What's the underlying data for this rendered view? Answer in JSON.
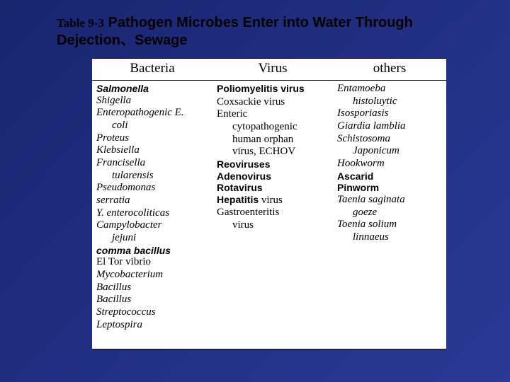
{
  "background_color": "#1f2d7a",
  "title": {
    "table_label": "Table 9-3",
    "main": "Pathogen Microbes Enter into Water Through",
    "sub": "Dejection、Sewage"
  },
  "columns": {
    "c1": "Bacteria",
    "c2": "Virus",
    "c3": "others"
  },
  "bacteria": {
    "l0": "Salmonella",
    "l1": "Shigella",
    "l2": "Enteropathogenic E.",
    "l2b": "coli",
    "l3": "Proteus",
    "l4": "Klebsiella",
    "l5": "Francisella",
    "l5b": "tularensis",
    "l6": " Pseudomonas",
    "l7": "serratia",
    "l8": "Y. enterocoliticas",
    "l9": "Campylobacter",
    "l9b": "jejuni",
    "l10": "comma bacillus",
    "l11": "El Tor vibrio",
    "l12": "Mycobacterium",
    "l13": "Bacillus",
    "l14": "Bacillus",
    "l15": "Streptococcus",
    "l16": "Leptospira"
  },
  "virus": {
    "l0a": "Poliomyelitis",
    "l0b": " virus",
    "l1": "Coxsackie virus",
    "l2": "Enteric",
    "l2b": "cytopathogenic",
    "l2c": "human orphan",
    "l2d": "virus, ECHOV",
    "l3": "Reoviruses",
    "l4": "Adenovirus",
    "l5": "Rotavirus",
    "l6a": "Hepatitis",
    "l6b": " virus",
    "l7": "Gastroenteritis",
    "l7b": "virus"
  },
  "others": {
    "l0": "Entamoeba",
    "l0b": "histoluytic",
    "l1": "Isosporiasis",
    "l2": "Giardia lamblia",
    "l3": "Schistosoma",
    "l3b": "Japonicum",
    "l4": "Hookworm",
    "l5": "Ascarid",
    "l6": "Pinworm",
    "l7": "Taenia saginata",
    "l7b": "goeze",
    "l8": "Toenia solium",
    "l8b": "linnaeus"
  }
}
